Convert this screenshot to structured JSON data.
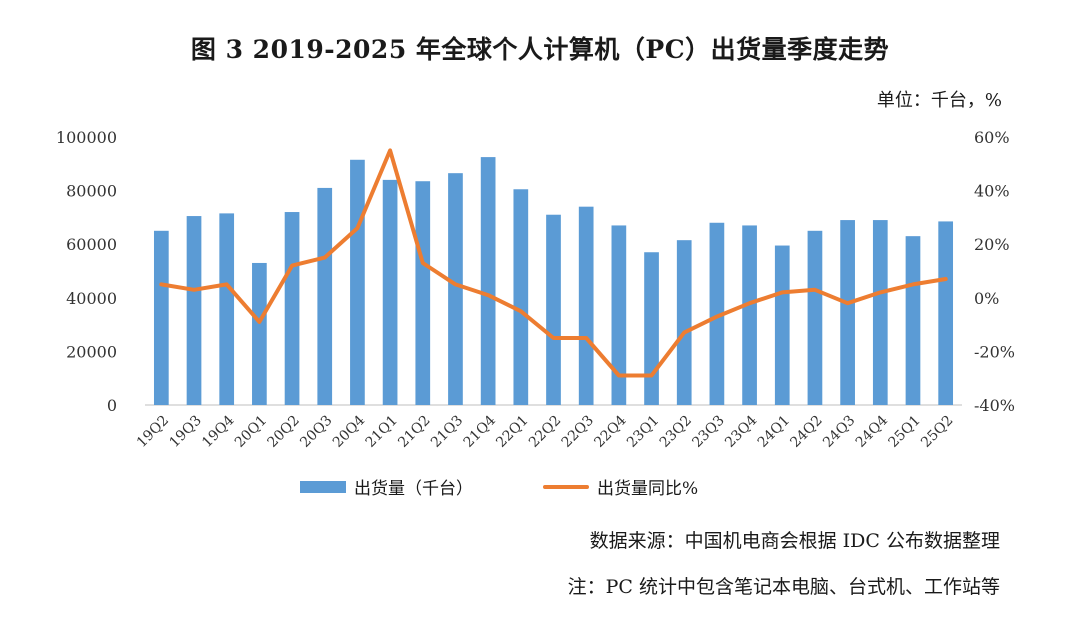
{
  "title": "图 3   2019-2025 年全球个人计算机（PC）出货量季度走势",
  "unit": "单位：千台，%",
  "legend": {
    "bar_label": "出货量（千台）",
    "line_label": "出货量同比%"
  },
  "source": "数据来源：中国机电商会根据 IDC 公布数据整理",
  "note": "注：PC 统计中包含笔记本电脑、台式机、工作站等",
  "colors": {
    "bar": "#5b9bd5",
    "line": "#ed7d31"
  },
  "chart_data": {
    "type": "bar",
    "categories": [
      "19Q2",
      "19Q3",
      "19Q4",
      "20Q1",
      "20Q2",
      "20Q3",
      "20Q4",
      "21Q1",
      "21Q2",
      "21Q3",
      "21Q4",
      "22Q1",
      "22Q2",
      "22Q3",
      "22Q4",
      "23Q1",
      "23Q2",
      "23Q3",
      "23Q4",
      "24Q1",
      "24Q2",
      "24Q3",
      "24Q4",
      "25Q1",
      "25Q2"
    ],
    "series": [
      {
        "name": "出货量（千台）",
        "type": "bar",
        "axis": "left",
        "values": [
          65000,
          70500,
          71500,
          53000,
          72000,
          81000,
          91500,
          84000,
          83500,
          86500,
          92500,
          80500,
          71000,
          74000,
          67000,
          57000,
          61500,
          68000,
          67000,
          59500,
          65000,
          69000,
          69000,
          63000,
          68500
        ]
      },
      {
        "name": "出货量同比%",
        "type": "line",
        "axis": "right",
        "values": [
          5,
          3,
          5,
          -9,
          12,
          15,
          26,
          55,
          13,
          5,
          1,
          -5,
          -15,
          -15,
          -29,
          -29,
          -13,
          -7,
          -2,
          2,
          3,
          -2,
          2,
          5,
          7
        ]
      }
    ],
    "y_left": {
      "lim": [
        0,
        100000
      ],
      "ticks": [
        "0",
        "20000",
        "40000",
        "60000",
        "80000",
        "100000"
      ]
    },
    "y_right": {
      "lim": [
        -40,
        60
      ],
      "ticks": [
        "-40%",
        "-20%",
        "0%",
        "20%",
        "40%",
        "60%"
      ]
    },
    "grid": false,
    "legend_position": "bottom"
  }
}
